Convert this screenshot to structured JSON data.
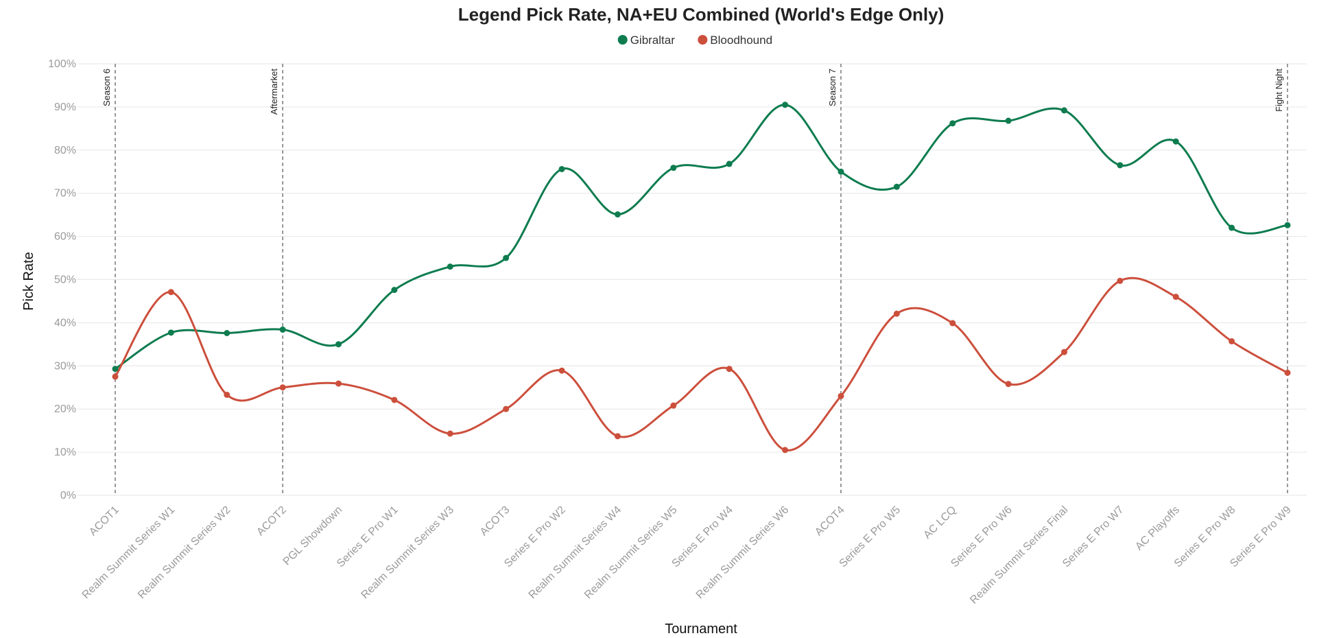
{
  "chart_data": {
    "type": "line",
    "title": "Legend Pick Rate, NA+EU Combined (World's Edge Only)",
    "xlabel": "Tournament",
    "ylabel": "Pick Rate",
    "ylim": [
      0,
      100
    ],
    "y_ticks": [
      "0%",
      "10%",
      "20%",
      "30%",
      "40%",
      "50%",
      "60%",
      "70%",
      "80%",
      "90%",
      "100%"
    ],
    "grid": true,
    "legend_position": "top-center",
    "categories": [
      "ACOT1",
      "Realm Summit Series W1",
      "Realm Summit Series W2",
      "ACOT2",
      "PGL Showdown",
      "Series E Pro W1",
      "Realm Summit Series W3",
      "ACOT3",
      "Series E Pro W2",
      "Realm Summit Series W4",
      "Realm Summit Series W5",
      "Series E Pro W4",
      "Realm Summit Series W6",
      "ACOT4",
      "Series E Pro W5",
      "AC LCQ",
      "Series E Pro W6",
      "Realm Summit Series Final",
      "Series E Pro W7",
      "AC Playoffs",
      "Series E Pro W8",
      "Series E Pro W9"
    ],
    "series": [
      {
        "name": "Gibraltar",
        "color": "#0e7c4f",
        "values": [
          29.3,
          37.7,
          37.6,
          38.4,
          35.0,
          47.6,
          53.0,
          55.0,
          75.6,
          65.1,
          75.9,
          76.8,
          90.5,
          75.0,
          71.5,
          86.2,
          86.8,
          89.2,
          76.5,
          82.0,
          62.0,
          62.6
        ]
      },
      {
        "name": "Bloodhound",
        "color": "#cc4f3c",
        "values": [
          27.5,
          47.1,
          23.3,
          25.0,
          25.9,
          22.1,
          14.3,
          20.0,
          28.9,
          13.7,
          20.8,
          29.3,
          10.5,
          23.0,
          42.1,
          39.9,
          25.8,
          33.2,
          49.7,
          46.0,
          35.7,
          28.4
        ]
      }
    ],
    "annotations": [
      {
        "label": "Season 6",
        "category": "ACOT1"
      },
      {
        "label": "Aftermarket",
        "category": "ACOT2"
      },
      {
        "label": "Season 7",
        "category": "ACOT4"
      },
      {
        "label": "Fight Night",
        "category": "Series E Pro W9"
      }
    ]
  }
}
